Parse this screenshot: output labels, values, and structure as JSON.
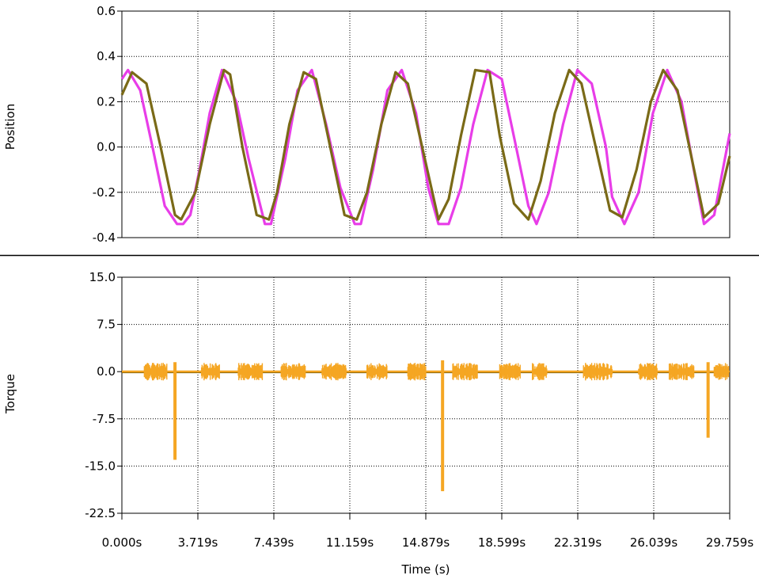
{
  "chart_data": [
    {
      "type": "line",
      "ylabel": "Position",
      "ylim": [
        -0.4,
        0.6
      ],
      "yticks": [
        "0.6",
        "0.4",
        "0.2",
        "0.0",
        "-0.2",
        "-0.4"
      ],
      "xlim": [
        0,
        29.759
      ],
      "grid": true,
      "series": [
        {
          "color": "#e83de8",
          "x": [
            0.0,
            0.3,
            0.9,
            1.5,
            2.1,
            2.7,
            3.0,
            3.35,
            3.8,
            4.3,
            4.9,
            5.6,
            6.2,
            7.0,
            7.3,
            8.0,
            8.6,
            9.3,
            10.0,
            10.7,
            11.4,
            11.7,
            12.3,
            13.0,
            13.7,
            14.4,
            15.0,
            15.5,
            16.0,
            16.6,
            17.2,
            17.9,
            18.6,
            19.3,
            19.9,
            20.3,
            20.9,
            21.6,
            22.3,
            23.0,
            23.7,
            24.0,
            24.6,
            25.3,
            26.0,
            26.7,
            27.4,
            28.0,
            28.5,
            29.0,
            29.759
          ],
          "y": [
            0.3,
            0.34,
            0.25,
            0.0,
            -0.26,
            -0.34,
            -0.34,
            -0.3,
            -0.1,
            0.15,
            0.34,
            0.2,
            -0.05,
            -0.34,
            -0.34,
            -0.05,
            0.25,
            0.34,
            0.1,
            -0.18,
            -0.34,
            -0.34,
            -0.1,
            0.25,
            0.34,
            0.15,
            -0.18,
            -0.34,
            -0.34,
            -0.18,
            0.1,
            0.34,
            0.3,
            0.0,
            -0.26,
            -0.34,
            -0.2,
            0.1,
            0.34,
            0.28,
            0.0,
            -0.22,
            -0.34,
            -0.2,
            0.15,
            0.34,
            0.2,
            -0.1,
            -0.34,
            -0.3,
            0.06
          ]
        },
        {
          "color": "#7a6a17",
          "x": [
            0.0,
            0.5,
            1.2,
            1.9,
            2.6,
            2.9,
            3.6,
            4.3,
            5.0,
            5.3,
            5.9,
            6.6,
            7.2,
            7.6,
            8.2,
            8.9,
            9.5,
            10.2,
            10.9,
            11.5,
            12.0,
            12.7,
            13.4,
            14.0,
            14.7,
            15.5,
            16.0,
            16.6,
            17.3,
            18.0,
            18.5,
            19.2,
            19.9,
            20.5,
            21.2,
            21.9,
            22.5,
            23.2,
            23.9,
            24.5,
            25.2,
            25.9,
            26.5,
            27.2,
            27.9,
            28.5,
            29.2,
            29.759
          ],
          "y": [
            0.23,
            0.33,
            0.28,
            0.0,
            -0.3,
            -0.32,
            -0.2,
            0.1,
            0.34,
            0.32,
            0.0,
            -0.3,
            -0.32,
            -0.2,
            0.1,
            0.33,
            0.3,
            0.0,
            -0.3,
            -0.32,
            -0.2,
            0.1,
            0.33,
            0.28,
            0.0,
            -0.32,
            -0.23,
            0.05,
            0.34,
            0.33,
            0.05,
            -0.25,
            -0.32,
            -0.15,
            0.15,
            0.34,
            0.28,
            0.0,
            -0.28,
            -0.31,
            -0.1,
            0.2,
            0.34,
            0.25,
            -0.05,
            -0.31,
            -0.25,
            -0.04
          ]
        }
      ]
    },
    {
      "type": "line",
      "ylabel": "Torque",
      "ylim": [
        -22.5,
        15.0
      ],
      "yticks": [
        "15.0",
        "7.5",
        "0.0",
        "-7.5",
        "-15.0",
        "-22.5"
      ],
      "xlim": [
        0,
        29.759
      ],
      "grid": true,
      "xlabel": "Time (s)",
      "xticks": [
        "0.000s",
        "3.719s",
        "7.439s",
        "11.159s",
        "14.879s",
        "18.599s",
        "22.319s",
        "26.039s",
        "29.759s"
      ],
      "series": [
        {
          "color": "#f5a623",
          "baseline": 0.0,
          "noise_bursts": [
            [
              1.1,
              2.2
            ],
            [
              3.9,
              4.8
            ],
            [
              5.7,
              6.9
            ],
            [
              7.8,
              9.0
            ],
            [
              9.8,
              11.0
            ],
            [
              12.0,
              13.0
            ],
            [
              14.0,
              14.9
            ],
            [
              16.2,
              17.4
            ],
            [
              18.5,
              19.5
            ],
            [
              20.1,
              20.8
            ],
            [
              22.6,
              24.0
            ],
            [
              25.3,
              26.2
            ],
            [
              26.8,
              28.0
            ],
            [
              29.0,
              29.7
            ]
          ],
          "spikes": [
            {
              "x": 2.6,
              "min": -14.0,
              "max": 1.5
            },
            {
              "x": 15.7,
              "min": -19.0,
              "max": 1.8
            },
            {
              "x": 28.7,
              "min": -10.5,
              "max": 1.5
            }
          ]
        }
      ]
    }
  ]
}
